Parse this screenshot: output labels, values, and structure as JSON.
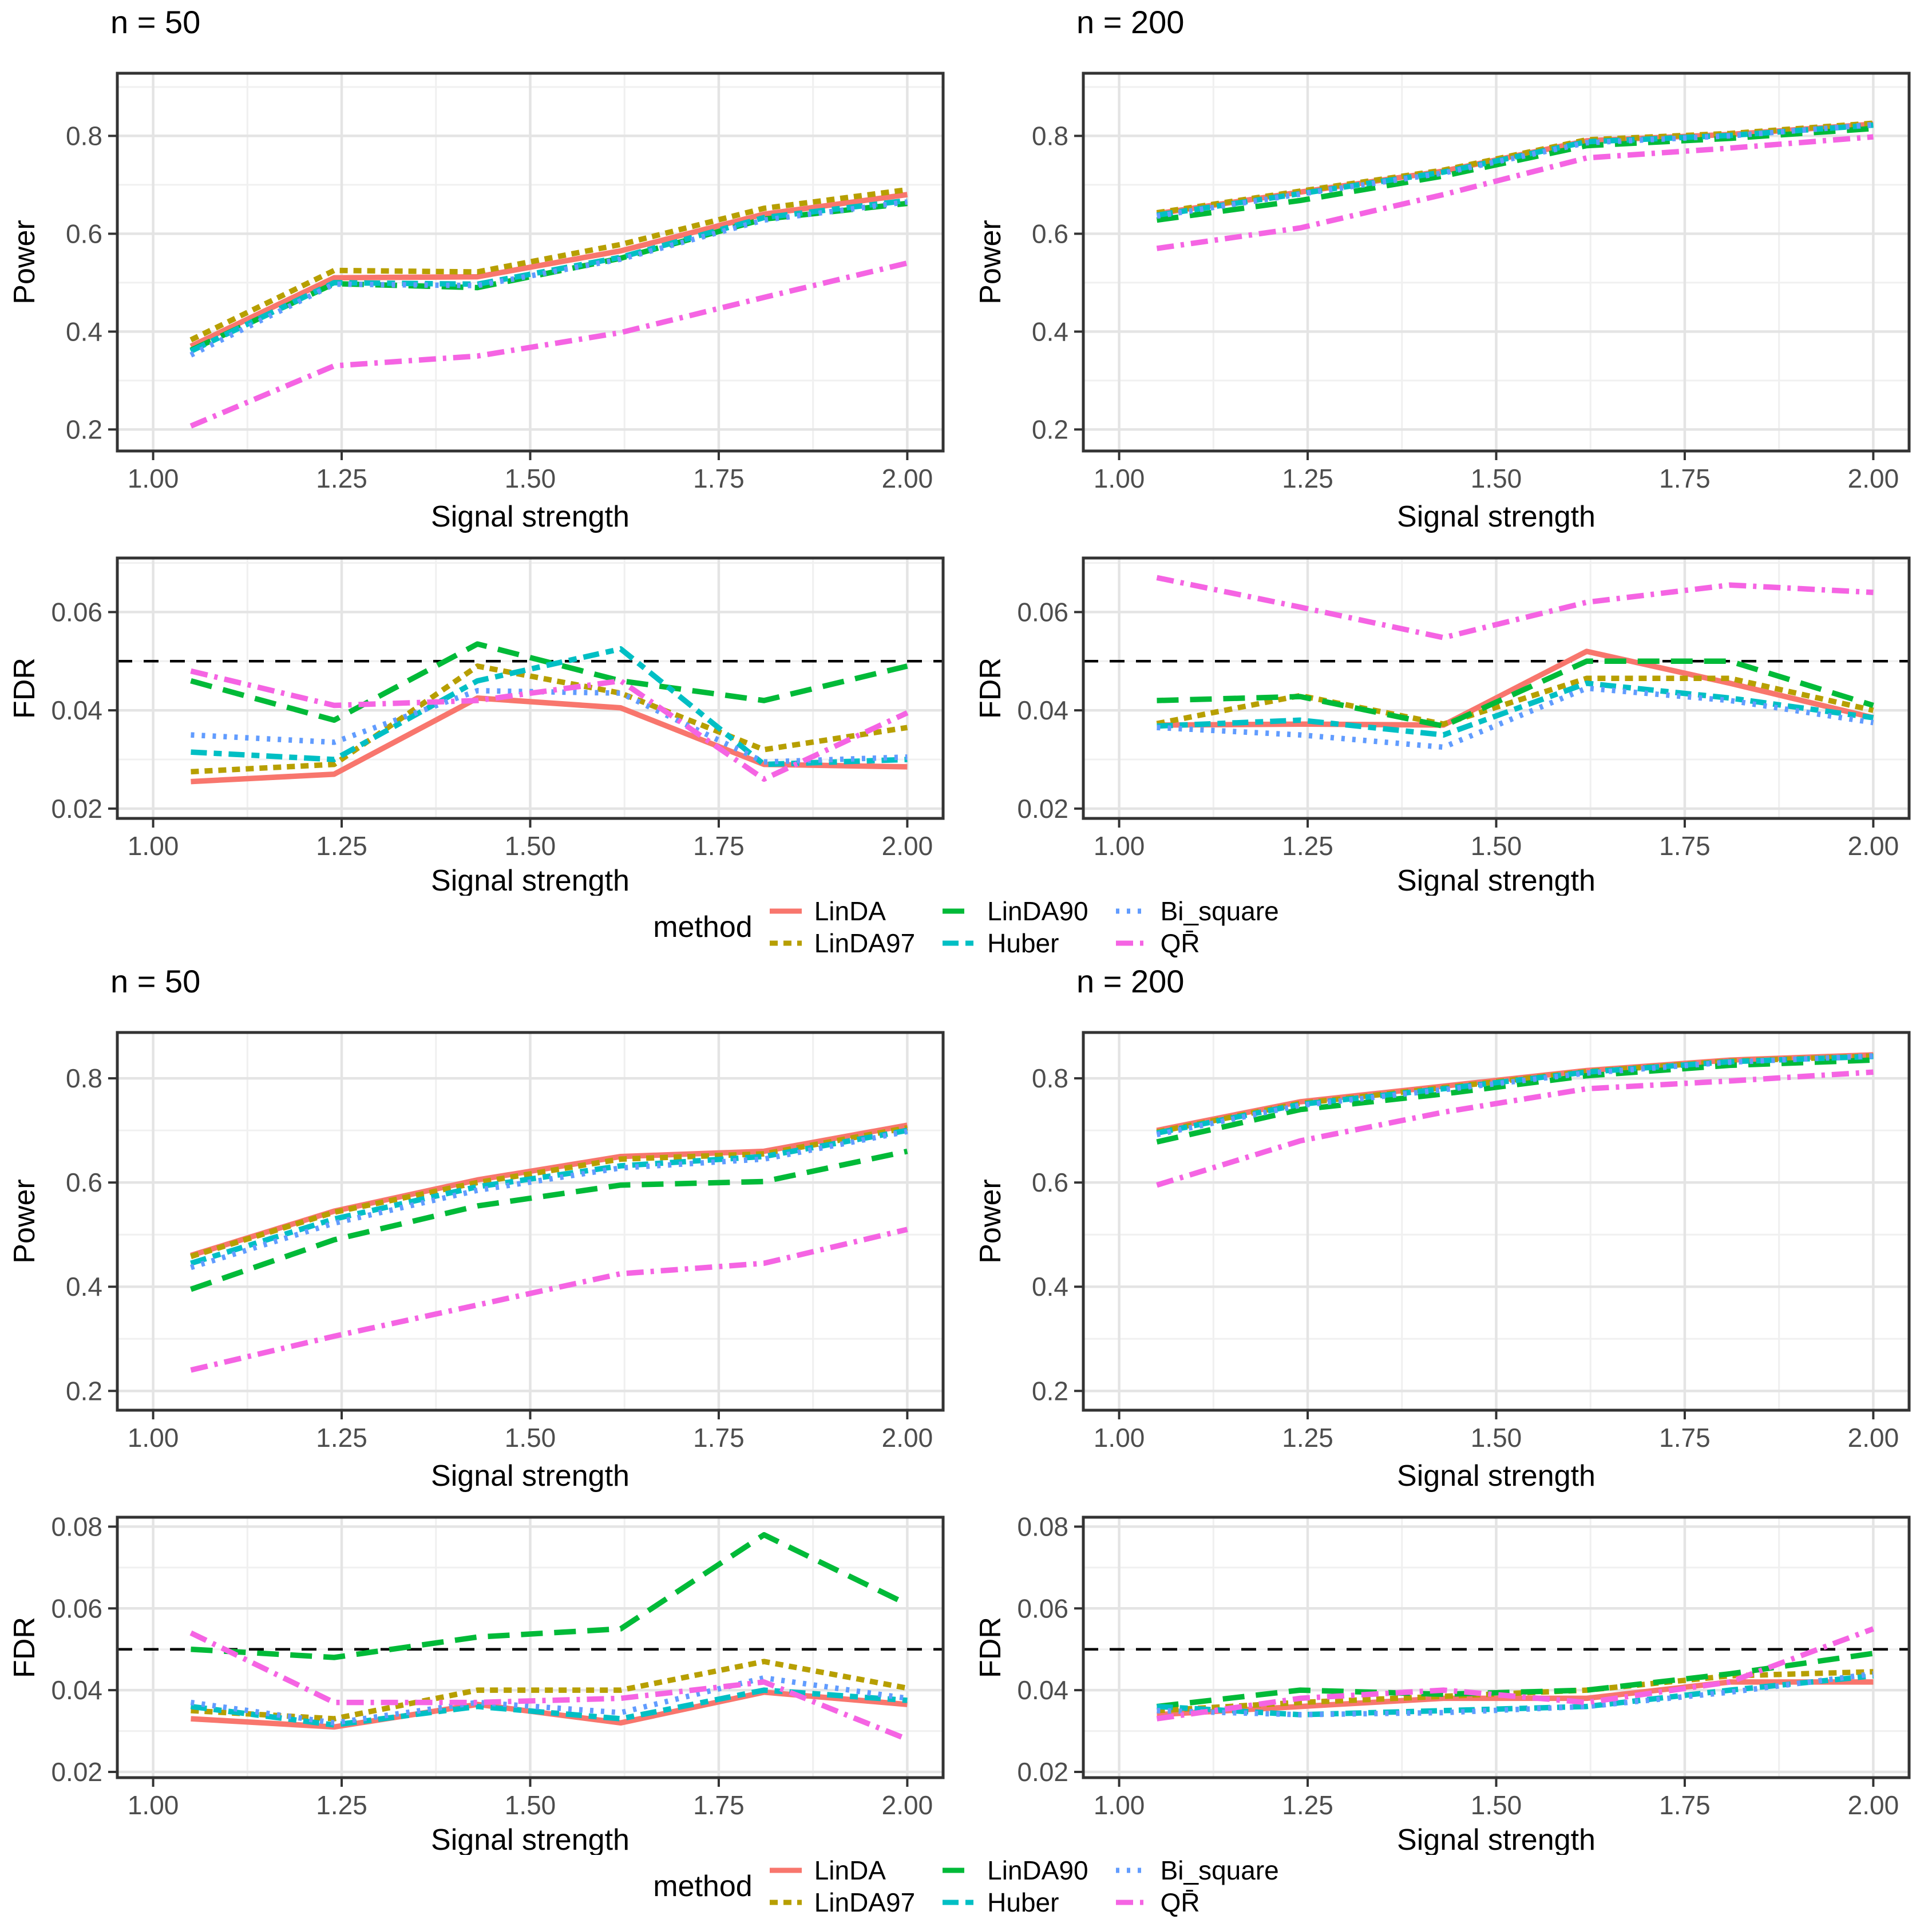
{
  "legend": {
    "title": "method"
  },
  "methods": [
    {
      "label": "LinDA",
      "color": "#F8766D",
      "linetype": "solid"
    },
    {
      "label": "LinDA97",
      "color": "#B79F00",
      "linetype": "dashed"
    },
    {
      "label": "LinDA90",
      "color": "#00BA38",
      "linetype": "longdash"
    },
    {
      "label": "Huber",
      "color": "#00BFC4",
      "linetype": "twodash"
    },
    {
      "label": "Bi_square",
      "color": "#619CFF",
      "linetype": "dotted"
    },
    {
      "label": "QR̄",
      "color": "#F564E3",
      "linetype": "dotdash"
    }
  ],
  "colors": {
    "grid_major": "#E4E4E4",
    "grid_minor": "#F0F0F0",
    "panel_border": "#333333",
    "tick_mark": "#333333",
    "tick_label": "#4D4D4D",
    "axis_title": "#000000",
    "reference_line": "#000000",
    "panel_background": "#FFFFFF"
  },
  "chart_data": [
    {
      "id": "top-power-n50",
      "type": "line",
      "kind": "power",
      "title": "n = 50",
      "xlabel": "Signal strength",
      "ylabel": "Power",
      "xlim": [
        0.9525,
        2.0475
      ],
      "ylim": [
        0.156,
        0.928
      ],
      "xticks": {
        "values": [
          1.0,
          1.25,
          1.5,
          1.75,
          2.0
        ],
        "labels": [
          "1.00",
          "1.25",
          "1.50",
          "1.75",
          "2.00"
        ]
      },
      "yticks": {
        "values": [
          0.2,
          0.4,
          0.6,
          0.8
        ],
        "labels": [
          "0.2",
          "0.4",
          "0.6",
          "0.8"
        ]
      },
      "minor_x": [
        1.125,
        1.375,
        1.625,
        1.875
      ],
      "minor_y": [
        0.3,
        0.5,
        0.7,
        0.9
      ],
      "grid": true,
      "hline": null,
      "x": [
        1.05,
        1.24,
        1.43,
        1.62,
        1.81,
        2.0
      ],
      "series": [
        {
          "name": "LinDA",
          "values": [
            0.37,
            0.51,
            0.512,
            0.565,
            0.64,
            0.68
          ]
        },
        {
          "name": "LinDA97",
          "values": [
            0.383,
            0.525,
            0.522,
            0.578,
            0.652,
            0.69
          ]
        },
        {
          "name": "LinDA90",
          "values": [
            0.362,
            0.498,
            0.49,
            0.55,
            0.63,
            0.662
          ]
        },
        {
          "name": "Huber",
          "values": [
            0.36,
            0.5,
            0.497,
            0.552,
            0.633,
            0.668
          ]
        },
        {
          "name": "Bi_square",
          "values": [
            0.352,
            0.497,
            0.494,
            0.548,
            0.628,
            0.665
          ]
        },
        {
          "name": "QR̄",
          "values": [
            0.207,
            0.33,
            0.35,
            0.398,
            0.47,
            0.54
          ]
        }
      ]
    },
    {
      "id": "top-power-n200",
      "type": "line",
      "kind": "power",
      "title": "n = 200",
      "xlabel": "Signal strength",
      "ylabel": "Power",
      "xlim": [
        0.9525,
        2.0475
      ],
      "ylim": [
        0.156,
        0.928
      ],
      "xticks": {
        "values": [
          1.0,
          1.25,
          1.5,
          1.75,
          2.0
        ],
        "labels": [
          "1.00",
          "1.25",
          "1.50",
          "1.75",
          "2.00"
        ]
      },
      "yticks": {
        "values": [
          0.2,
          0.4,
          0.6,
          0.8
        ],
        "labels": [
          "0.2",
          "0.4",
          "0.6",
          "0.8"
        ]
      },
      "minor_x": [
        1.125,
        1.375,
        1.625,
        1.875
      ],
      "minor_y": [
        0.3,
        0.5,
        0.7,
        0.9
      ],
      "grid": true,
      "hline": null,
      "x": [
        1.05,
        1.24,
        1.43,
        1.62,
        1.81,
        2.0
      ],
      "series": [
        {
          "name": "LinDA",
          "values": [
            0.641,
            0.685,
            0.728,
            0.79,
            0.803,
            0.824
          ]
        },
        {
          "name": "LinDA97",
          "values": [
            0.643,
            0.687,
            0.73,
            0.792,
            0.805,
            0.826
          ]
        },
        {
          "name": "LinDA90",
          "values": [
            0.628,
            0.668,
            0.718,
            0.78,
            0.795,
            0.815
          ]
        },
        {
          "name": "Huber",
          "values": [
            0.638,
            0.682,
            0.726,
            0.788,
            0.801,
            0.822
          ]
        },
        {
          "name": "Bi_square",
          "values": [
            0.636,
            0.681,
            0.724,
            0.786,
            0.8,
            0.823
          ]
        },
        {
          "name": "QR̄",
          "values": [
            0.57,
            0.612,
            0.68,
            0.755,
            0.775,
            0.798
          ]
        }
      ]
    },
    {
      "id": "top-fdr-n50",
      "type": "line",
      "kind": "fdr",
      "title": null,
      "xlabel": "Signal strength",
      "ylabel": "FDR",
      "xlim": [
        0.9525,
        2.0475
      ],
      "ylim": [
        0.018,
        0.071
      ],
      "xticks": {
        "values": [
          1.0,
          1.25,
          1.5,
          1.75,
          2.0
        ],
        "labels": [
          "1.00",
          "1.25",
          "1.50",
          "1.75",
          "2.00"
        ]
      },
      "yticks": {
        "values": [
          0.02,
          0.04,
          0.06
        ],
        "labels": [
          "0.02",
          "0.04",
          "0.06"
        ]
      },
      "minor_x": [
        1.125,
        1.375,
        1.625,
        1.875
      ],
      "minor_y": [
        0.03,
        0.05,
        0.07
      ],
      "grid": true,
      "hline": 0.05,
      "x": [
        1.05,
        1.24,
        1.43,
        1.62,
        1.81,
        2.0
      ],
      "series": [
        {
          "name": "LinDA",
          "values": [
            0.0255,
            0.027,
            0.0425,
            0.0405,
            0.029,
            0.0285
          ]
        },
        {
          "name": "LinDA97",
          "values": [
            0.0275,
            0.029,
            0.049,
            0.0435,
            0.032,
            0.0365
          ]
        },
        {
          "name": "LinDA90",
          "values": [
            0.046,
            0.038,
            0.0535,
            0.046,
            0.042,
            0.049
          ]
        },
        {
          "name": "Huber",
          "values": [
            0.0315,
            0.03,
            0.046,
            0.0525,
            0.029,
            0.03
          ]
        },
        {
          "name": "Bi_square",
          "values": [
            0.035,
            0.0335,
            0.044,
            0.0435,
            0.0295,
            0.0305
          ]
        },
        {
          "name": "QR̄",
          "values": [
            0.048,
            0.041,
            0.042,
            0.046,
            0.026,
            0.0395
          ]
        }
      ]
    },
    {
      "id": "top-fdr-n200",
      "type": "line",
      "kind": "fdr",
      "title": null,
      "xlabel": "Signal strength",
      "ylabel": "FDR",
      "xlim": [
        0.9525,
        2.0475
      ],
      "ylim": [
        0.018,
        0.071
      ],
      "xticks": {
        "values": [
          1.0,
          1.25,
          1.5,
          1.75,
          2.0
        ],
        "labels": [
          "1.00",
          "1.25",
          "1.50",
          "1.75",
          "2.00"
        ]
      },
      "yticks": {
        "values": [
          0.02,
          0.04,
          0.06
        ],
        "labels": [
          "0.02",
          "0.04",
          "0.06"
        ]
      },
      "minor_x": [
        1.125,
        1.375,
        1.625,
        1.875
      ],
      "minor_y": [
        0.03,
        0.05,
        0.07
      ],
      "grid": true,
      "hline": 0.05,
      "x": [
        1.05,
        1.24,
        1.43,
        1.62,
        1.81,
        2.0
      ],
      "series": [
        {
          "name": "LinDA",
          "values": [
            0.037,
            0.0372,
            0.037,
            0.052,
            0.0455,
            0.0385
          ]
        },
        {
          "name": "LinDA97",
          "values": [
            0.0373,
            0.043,
            0.0372,
            0.0465,
            0.0465,
            0.04
          ]
        },
        {
          "name": "LinDA90",
          "values": [
            0.042,
            0.0428,
            0.0368,
            0.05,
            0.05,
            0.041
          ]
        },
        {
          "name": "Huber",
          "values": [
            0.0368,
            0.038,
            0.035,
            0.0455,
            0.0425,
            0.0385
          ]
        },
        {
          "name": "Bi_square",
          "values": [
            0.0365,
            0.035,
            0.0325,
            0.0445,
            0.042,
            0.0375
          ]
        },
        {
          "name": "QR̄",
          "values": [
            0.067,
            0.061,
            0.0548,
            0.062,
            0.0655,
            0.064
          ]
        }
      ]
    },
    {
      "id": "bottom-power-n50",
      "type": "line",
      "kind": "power",
      "title": "n = 50",
      "xlabel": "Signal strength",
      "ylabel": "Power",
      "xlim": [
        0.9525,
        2.0475
      ],
      "ylim": [
        0.163,
        0.888
      ],
      "xticks": {
        "values": [
          1.0,
          1.25,
          1.5,
          1.75,
          2.0
        ],
        "labels": [
          "1.00",
          "1.25",
          "1.50",
          "1.75",
          "2.00"
        ]
      },
      "yticks": {
        "values": [
          0.2,
          0.4,
          0.6,
          0.8
        ],
        "labels": [
          "0.2",
          "0.4",
          "0.6",
          "0.8"
        ]
      },
      "minor_x": [
        1.125,
        1.375,
        1.625,
        1.875
      ],
      "minor_y": [
        0.3,
        0.5,
        0.7
      ],
      "grid": true,
      "hline": null,
      "x": [
        1.05,
        1.24,
        1.43,
        1.62,
        1.81,
        2.0
      ],
      "series": [
        {
          "name": "LinDA",
          "values": [
            0.46,
            0.545,
            0.605,
            0.65,
            0.66,
            0.71
          ]
        },
        {
          "name": "LinDA97",
          "values": [
            0.458,
            0.543,
            0.6,
            0.645,
            0.655,
            0.705
          ]
        },
        {
          "name": "LinDA90",
          "values": [
            0.395,
            0.49,
            0.555,
            0.595,
            0.602,
            0.66
          ]
        },
        {
          "name": "Huber",
          "values": [
            0.445,
            0.53,
            0.592,
            0.632,
            0.65,
            0.7
          ]
        },
        {
          "name": "Bi_square",
          "values": [
            0.437,
            0.522,
            0.585,
            0.628,
            0.645,
            0.698
          ]
        },
        {
          "name": "QR̄",
          "values": [
            0.24,
            0.305,
            0.365,
            0.425,
            0.445,
            0.51
          ]
        }
      ]
    },
    {
      "id": "bottom-power-n200",
      "type": "line",
      "kind": "power",
      "title": "n = 200",
      "xlabel": "Signal strength",
      "ylabel": "Power",
      "xlim": [
        0.9525,
        2.0475
      ],
      "ylim": [
        0.163,
        0.888
      ],
      "xticks": {
        "values": [
          1.0,
          1.25,
          1.5,
          1.75,
          2.0
        ],
        "labels": [
          "1.00",
          "1.25",
          "1.50",
          "1.75",
          "2.00"
        ]
      },
      "yticks": {
        "values": [
          0.2,
          0.4,
          0.6,
          0.8
        ],
        "labels": [
          "0.2",
          "0.4",
          "0.6",
          "0.8"
        ]
      },
      "minor_x": [
        1.125,
        1.375,
        1.625,
        1.875
      ],
      "minor_y": [
        0.3,
        0.5,
        0.7
      ],
      "grid": true,
      "hline": null,
      "x": [
        1.05,
        1.24,
        1.43,
        1.62,
        1.81,
        2.0
      ],
      "series": [
        {
          "name": "LinDA",
          "values": [
            0.7,
            0.755,
            0.785,
            0.815,
            0.835,
            0.845
          ]
        },
        {
          "name": "LinDA97",
          "values": [
            0.697,
            0.752,
            0.782,
            0.813,
            0.833,
            0.843
          ]
        },
        {
          "name": "LinDA90",
          "values": [
            0.678,
            0.74,
            0.77,
            0.805,
            0.825,
            0.835
          ]
        },
        {
          "name": "Huber",
          "values": [
            0.695,
            0.75,
            0.78,
            0.812,
            0.832,
            0.842
          ]
        },
        {
          "name": "Bi_square",
          "values": [
            0.692,
            0.748,
            0.778,
            0.81,
            0.831,
            0.843
          ]
        },
        {
          "name": "QR̄",
          "values": [
            0.595,
            0.68,
            0.735,
            0.78,
            0.795,
            0.812
          ]
        }
      ]
    },
    {
      "id": "bottom-fdr-n50",
      "type": "line",
      "kind": "fdr",
      "title": null,
      "xlabel": "Signal strength",
      "ylabel": "FDR",
      "xlim": [
        0.9525,
        2.0475
      ],
      "ylim": [
        0.0186,
        0.0823
      ],
      "xticks": {
        "values": [
          1.0,
          1.25,
          1.5,
          1.75,
          2.0
        ],
        "labels": [
          "1.00",
          "1.25",
          "1.50",
          "1.75",
          "2.00"
        ]
      },
      "yticks": {
        "values": [
          0.02,
          0.04,
          0.06,
          0.08
        ],
        "labels": [
          "0.02",
          "0.04",
          "0.06",
          "0.08"
        ]
      },
      "minor_x": [
        1.125,
        1.375,
        1.625,
        1.875
      ],
      "minor_y": [
        0.03,
        0.05,
        0.07
      ],
      "grid": true,
      "hline": 0.05,
      "x": [
        1.05,
        1.24,
        1.43,
        1.62,
        1.81,
        2.0
      ],
      "series": [
        {
          "name": "LinDA",
          "values": [
            0.033,
            0.031,
            0.0365,
            0.032,
            0.0395,
            0.0365
          ]
        },
        {
          "name": "LinDA97",
          "values": [
            0.035,
            0.033,
            0.04,
            0.04,
            0.047,
            0.0405
          ]
        },
        {
          "name": "LinDA90",
          "values": [
            0.05,
            0.048,
            0.053,
            0.055,
            0.078,
            0.061
          ]
        },
        {
          "name": "Huber",
          "values": [
            0.036,
            0.0315,
            0.036,
            0.033,
            0.04,
            0.0375
          ]
        },
        {
          "name": "Bi_square",
          "values": [
            0.037,
            0.032,
            0.037,
            0.0345,
            0.043,
            0.038
          ]
        },
        {
          "name": "QR̄",
          "values": [
            0.054,
            0.037,
            0.037,
            0.038,
            0.042,
            0.028
          ]
        }
      ]
    },
    {
      "id": "bottom-fdr-n200",
      "type": "line",
      "kind": "fdr",
      "title": null,
      "xlabel": "Signal strength",
      "ylabel": "FDR",
      "xlim": [
        0.9525,
        2.0475
      ],
      "ylim": [
        0.0186,
        0.0823
      ],
      "xticks": {
        "values": [
          1.0,
          1.25,
          1.5,
          1.75,
          2.0
        ],
        "labels": [
          "1.00",
          "1.25",
          "1.50",
          "1.75",
          "2.00"
        ]
      },
      "yticks": {
        "values": [
          0.02,
          0.04,
          0.06,
          0.08
        ],
        "labels": [
          "0.02",
          "0.04",
          "0.06",
          "0.08"
        ]
      },
      "minor_x": [
        1.125,
        1.375,
        1.625,
        1.875
      ],
      "minor_y": [
        0.03,
        0.05,
        0.07
      ],
      "grid": true,
      "hline": 0.05,
      "x": [
        1.05,
        1.24,
        1.43,
        1.62,
        1.81,
        2.0
      ],
      "series": [
        {
          "name": "LinDA",
          "values": [
            0.034,
            0.036,
            0.038,
            0.038,
            0.042,
            0.042
          ]
        },
        {
          "name": "LinDA97",
          "values": [
            0.035,
            0.037,
            0.0385,
            0.04,
            0.0435,
            0.0445
          ]
        },
        {
          "name": "LinDA90",
          "values": [
            0.036,
            0.04,
            0.039,
            0.04,
            0.044,
            0.049
          ]
        },
        {
          "name": "Huber",
          "values": [
            0.036,
            0.034,
            0.035,
            0.036,
            0.04,
            0.0435
          ]
        },
        {
          "name": "Bi_square",
          "values": [
            0.035,
            0.034,
            0.0345,
            0.036,
            0.0395,
            0.044
          ]
        },
        {
          "name": "QR̄",
          "values": [
            0.033,
            0.038,
            0.04,
            0.037,
            0.042,
            0.055
          ]
        }
      ]
    }
  ]
}
